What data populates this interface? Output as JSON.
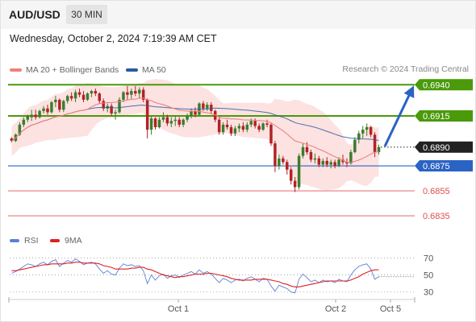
{
  "header": {
    "symbol": "AUD/USD",
    "interval": "30 MIN",
    "datetime": "Wednesday, October 2, 2024 7:19:39 AM CET"
  },
  "legend": {
    "ma20_label": "MA 20 + Bollinger Bands",
    "ma50_label": "MA 50",
    "credit": "Research © 2024 Trading Central"
  },
  "rsi_legend": {
    "rsi_label": "RSI",
    "ma_label": "9MA"
  },
  "colors": {
    "bull": "#3a7d2c",
    "bear": "#b22222",
    "ma20": "#f08080",
    "ma50": "#2c5aa0",
    "band_fill": "#fde2e2",
    "resistance": "#4a9a0a",
    "support": "#2a63c4",
    "support_red": "#e05050",
    "rsi": "#5b7fd9",
    "rsi_ma": "#e02020",
    "arrow": "#2a63c4"
  },
  "chart_data": [
    {
      "type": "candlestick",
      "series_name": "AUD/USD",
      "ylim": [
        0.6826,
        0.6946
      ],
      "x_labels": [
        "Oct 1",
        "Oct 2",
        "Oct 5"
      ],
      "current_price": "0.6890",
      "levels": [
        {
          "value": 0.694,
          "label": "0.6940",
          "kind": "resistance"
        },
        {
          "value": 0.6915,
          "label": "0.6915",
          "kind": "resistance"
        },
        {
          "value": 0.6875,
          "label": "0.6875",
          "kind": "pivot"
        },
        {
          "value": 0.6855,
          "label": "0.6855",
          "kind": "support"
        },
        {
          "value": 0.6835,
          "label": "0.6835",
          "kind": "support"
        }
      ],
      "target": {
        "from": 0.689,
        "to": 0.694
      },
      "candles": [
        [
          0.6897,
          0.6898,
          0.6894,
          0.6895
        ],
        [
          0.6895,
          0.6901,
          0.6894,
          0.69
        ],
        [
          0.69,
          0.691,
          0.6899,
          0.6908
        ],
        [
          0.6908,
          0.6914,
          0.6906,
          0.6912
        ],
        [
          0.6912,
          0.6916,
          0.691,
          0.6915
        ],
        [
          0.6914,
          0.692,
          0.6911,
          0.6916
        ],
        [
          0.6916,
          0.692,
          0.6912,
          0.6914
        ],
        [
          0.6914,
          0.692,
          0.6913,
          0.6919
        ],
        [
          0.6919,
          0.6923,
          0.6917,
          0.6921
        ],
        [
          0.6921,
          0.6924,
          0.6916,
          0.6918
        ],
        [
          0.6918,
          0.6927,
          0.6917,
          0.6926
        ],
        [
          0.6926,
          0.6931,
          0.6922,
          0.6928
        ],
        [
          0.6928,
          0.6929,
          0.6918,
          0.692
        ],
        [
          0.692,
          0.6928,
          0.6918,
          0.6927
        ],
        [
          0.6927,
          0.6932,
          0.6925,
          0.6931
        ],
        [
          0.6931,
          0.6934,
          0.6927,
          0.6929
        ],
        [
          0.6929,
          0.6936,
          0.6926,
          0.6934
        ],
        [
          0.6934,
          0.6937,
          0.693,
          0.6932
        ],
        [
          0.6932,
          0.6935,
          0.6926,
          0.6928
        ],
        [
          0.6928,
          0.6934,
          0.6927,
          0.6933
        ],
        [
          0.6933,
          0.6936,
          0.693,
          0.6935
        ],
        [
          0.6935,
          0.6937,
          0.6931,
          0.6933
        ],
        [
          0.6933,
          0.6934,
          0.6925,
          0.6927
        ],
        [
          0.6927,
          0.6929,
          0.6919,
          0.6921
        ],
        [
          0.6921,
          0.6925,
          0.6918,
          0.6923
        ],
        [
          0.6923,
          0.6925,
          0.6915,
          0.6917
        ],
        [
          0.6917,
          0.692,
          0.6912,
          0.6918
        ],
        [
          0.6918,
          0.693,
          0.6917,
          0.6928
        ],
        [
          0.6928,
          0.6935,
          0.6926,
          0.6934
        ],
        [
          0.6934,
          0.6939,
          0.6928,
          0.6932
        ],
        [
          0.6932,
          0.6937,
          0.6928,
          0.6935
        ],
        [
          0.6935,
          0.6939,
          0.6931,
          0.6933
        ],
        [
          0.6933,
          0.6938,
          0.6929,
          0.6936
        ],
        [
          0.6936,
          0.6938,
          0.6926,
          0.6928
        ],
        [
          0.6928,
          0.6929,
          0.6897,
          0.6904
        ],
        [
          0.6904,
          0.6915,
          0.69,
          0.6913
        ],
        [
          0.6913,
          0.6914,
          0.6904,
          0.6906
        ],
        [
          0.6906,
          0.6914,
          0.6905,
          0.6912
        ],
        [
          0.6912,
          0.6918,
          0.691,
          0.6914
        ],
        [
          0.6914,
          0.6916,
          0.6907,
          0.6909
        ],
        [
          0.6909,
          0.6914,
          0.6906,
          0.6911
        ],
        [
          0.6911,
          0.6915,
          0.6907,
          0.6912
        ],
        [
          0.6912,
          0.6914,
          0.6906,
          0.6908
        ],
        [
          0.6908,
          0.6913,
          0.6906,
          0.6912
        ],
        [
          0.6912,
          0.6917,
          0.691,
          0.6915
        ],
        [
          0.6915,
          0.6921,
          0.6913,
          0.6919
        ],
        [
          0.6919,
          0.6922,
          0.6914,
          0.6916
        ],
        [
          0.6916,
          0.6926,
          0.6915,
          0.6925
        ],
        [
          0.6925,
          0.6927,
          0.6919,
          0.6921
        ],
        [
          0.6921,
          0.6926,
          0.6919,
          0.6924
        ],
        [
          0.6924,
          0.6926,
          0.6917,
          0.6919
        ],
        [
          0.6919,
          0.692,
          0.691,
          0.6912
        ],
        [
          0.6912,
          0.6914,
          0.69,
          0.6902
        ],
        [
          0.6902,
          0.691,
          0.69,
          0.6908
        ],
        [
          0.6908,
          0.6912,
          0.6904,
          0.6906
        ],
        [
          0.6906,
          0.6908,
          0.6899,
          0.6901
        ],
        [
          0.6901,
          0.6907,
          0.6899,
          0.6905
        ],
        [
          0.6905,
          0.6909,
          0.6902,
          0.6907
        ],
        [
          0.6907,
          0.691,
          0.6902,
          0.6904
        ],
        [
          0.6904,
          0.691,
          0.6902,
          0.6908
        ],
        [
          0.6908,
          0.6913,
          0.6906,
          0.6911
        ],
        [
          0.6911,
          0.6913,
          0.6905,
          0.6907
        ],
        [
          0.6907,
          0.6909,
          0.6902,
          0.6904
        ],
        [
          0.6904,
          0.691,
          0.6903,
          0.6909
        ],
        [
          0.6909,
          0.6912,
          0.6906,
          0.6908
        ],
        [
          0.6908,
          0.6909,
          0.6891,
          0.6893
        ],
        [
          0.6893,
          0.6895,
          0.687,
          0.6875
        ],
        [
          0.6875,
          0.6884,
          0.6872,
          0.6881
        ],
        [
          0.6881,
          0.6883,
          0.6876,
          0.6878
        ],
        [
          0.6878,
          0.688,
          0.6868,
          0.6872
        ],
        [
          0.6872,
          0.6874,
          0.686,
          0.6863
        ],
        [
          0.6863,
          0.6866,
          0.6854,
          0.6858
        ],
        [
          0.6858,
          0.6885,
          0.6856,
          0.6883
        ],
        [
          0.6883,
          0.6893,
          0.6881,
          0.689
        ],
        [
          0.689,
          0.6894,
          0.6884,
          0.6886
        ],
        [
          0.6886,
          0.6888,
          0.6878,
          0.688
        ],
        [
          0.688,
          0.6885,
          0.6877,
          0.6881
        ],
        [
          0.6881,
          0.6883,
          0.6874,
          0.6876
        ],
        [
          0.6876,
          0.6881,
          0.6874,
          0.6879
        ],
        [
          0.6879,
          0.6882,
          0.6874,
          0.6876
        ],
        [
          0.6876,
          0.688,
          0.6873,
          0.6878
        ],
        [
          0.6878,
          0.688,
          0.6873,
          0.6875
        ],
        [
          0.6875,
          0.6882,
          0.6874,
          0.688
        ],
        [
          0.688,
          0.6884,
          0.6876,
          0.6878
        ],
        [
          0.6878,
          0.6881,
          0.6874,
          0.6877
        ],
        [
          0.6877,
          0.6888,
          0.6876,
          0.6886
        ],
        [
          0.6886,
          0.6898,
          0.6885,
          0.6896
        ],
        [
          0.6896,
          0.6903,
          0.6893,
          0.6901
        ],
        [
          0.6901,
          0.6907,
          0.6897,
          0.6904
        ],
        [
          0.6904,
          0.6909,
          0.6899,
          0.6906
        ],
        [
          0.6906,
          0.6907,
          0.6898,
          0.69
        ],
        [
          0.69,
          0.6902,
          0.6882,
          0.6886
        ],
        [
          0.6886,
          0.6892,
          0.6884,
          0.689
        ]
      ]
    },
    {
      "type": "line",
      "title": "RSI",
      "ylim": [
        25,
        78
      ],
      "y_ticks": [
        70,
        50,
        30
      ],
      "series": [
        {
          "name": "RSI",
          "values": [
            52,
            54,
            57,
            60,
            63,
            62,
            60,
            63,
            65,
            62,
            66,
            68,
            60,
            64,
            67,
            65,
            69,
            66,
            62,
            64,
            65,
            63,
            57,
            52,
            55,
            51,
            50,
            58,
            63,
            61,
            62,
            60,
            61,
            55,
            40,
            50,
            44,
            49,
            51,
            46,
            49,
            50,
            47,
            50,
            52,
            54,
            51,
            56,
            52,
            54,
            51,
            46,
            41,
            46,
            44,
            41,
            44,
            45,
            43,
            46,
            48,
            45,
            42,
            46,
            45,
            37,
            31,
            38,
            36,
            34,
            30,
            29,
            45,
            51,
            47,
            42,
            44,
            41,
            44,
            42,
            43,
            41,
            45,
            43,
            42,
            50,
            56,
            60,
            62,
            63,
            57,
            45,
            48
          ]
        },
        {
          "name": "9MA",
          "values": [
            55,
            55,
            56,
            57,
            58,
            59,
            60,
            61,
            62,
            62,
            63,
            63,
            63,
            63,
            64,
            64,
            65,
            65,
            64,
            64,
            64,
            64,
            63,
            61,
            60,
            59,
            57,
            57,
            57,
            57,
            58,
            58,
            59,
            59,
            57,
            56,
            54,
            52,
            50,
            49,
            48,
            47,
            48,
            48,
            49,
            50,
            51,
            51,
            51,
            52,
            52,
            51,
            50,
            49,
            48,
            46,
            45,
            44,
            44,
            44,
            44,
            45,
            45,
            45,
            45,
            44,
            43,
            42,
            40,
            39,
            37,
            36,
            36,
            37,
            38,
            39,
            40,
            41,
            42,
            43,
            43,
            43,
            43,
            43,
            43,
            44,
            46,
            48,
            51,
            53,
            55,
            56,
            56
          ]
        }
      ]
    }
  ]
}
